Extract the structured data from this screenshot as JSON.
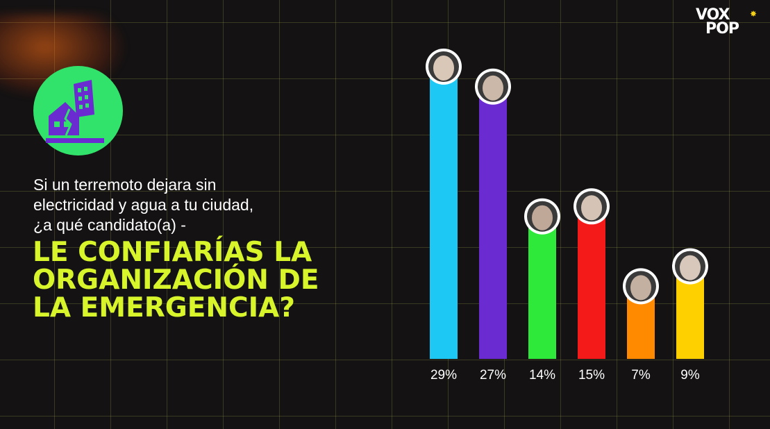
{
  "brand": {
    "logo_line1": "VOX",
    "logo_line2": "POP"
  },
  "icon": "building-earthquake-icon",
  "question": {
    "line1": "Si un terremoto dejara sin",
    "line2": "electricidad y agua a tu ciudad,",
    "line3": "¿a qué candidato(a) -"
  },
  "headline": {
    "line1": "LE CONFIARÍAS LA",
    "line2": "ORGANIZACIÓN DE",
    "line3": "LA EMERGENCIA?"
  },
  "colors": {
    "background": "#141213",
    "accent": "#d7f52a",
    "badge": "#31e36a"
  },
  "chart_data": {
    "type": "bar",
    "categories": [
      "",
      "",
      "",
      "",
      "",
      ""
    ],
    "values": [
      29,
      27,
      14,
      15,
      7,
      9
    ],
    "labels": [
      "29%",
      "27%",
      "14%",
      "15%",
      "7%",
      "9%"
    ],
    "colors": [
      "#1ec8f5",
      "#6a2bd0",
      "#2ee83a",
      "#f51a1a",
      "#ff8a00",
      "#ffd000"
    ],
    "ylim": [
      0,
      29
    ],
    "grid": true
  }
}
